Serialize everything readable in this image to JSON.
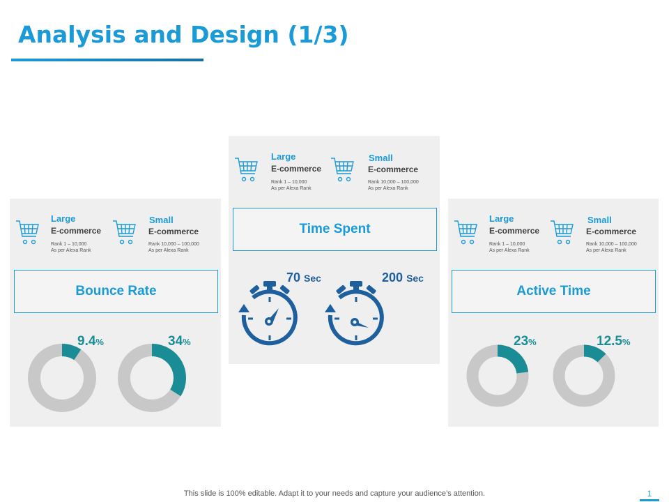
{
  "slide": {
    "title": "Analysis and Design (1/3)",
    "footer": "This slide is 100% editable. Adapt it to your needs and capture your audience’s attention.",
    "page_number": "1"
  },
  "colors": {
    "blue": "#1a9ad6",
    "teal": "#1a8c95",
    "dark_blue": "#1e5f9e",
    "gray": "#c8c8c8",
    "panel": "#efefef"
  },
  "legend": {
    "large": "Large",
    "small": "Small",
    "ecommerce": "E-commerce",
    "large_rank": "Rank 1 – 10,000",
    "small_rank": "Rank 10,000 – 100,000",
    "rank_source": "As per Alexa Rank",
    "icon": "shopping-cart-icon"
  },
  "bounce_rate": {
    "label": "Bounce Rate",
    "large": {
      "value": 9.4,
      "display": "9.4",
      "symbol": "%"
    },
    "small": {
      "value": 34,
      "display": "34",
      "symbol": "%"
    }
  },
  "time_spent": {
    "label": "Time Spent",
    "large": {
      "value": 70,
      "display": "70",
      "unit": "Sec"
    },
    "small": {
      "value": 200,
      "display": "200",
      "unit": "Sec"
    },
    "icon": "stopwatch-icon"
  },
  "active_time": {
    "label": "Active Time",
    "large": {
      "value": 23,
      "display": "23",
      "symbol": "%"
    },
    "small": {
      "value": 12.5,
      "display": "12.5",
      "symbol": "%"
    }
  }
}
